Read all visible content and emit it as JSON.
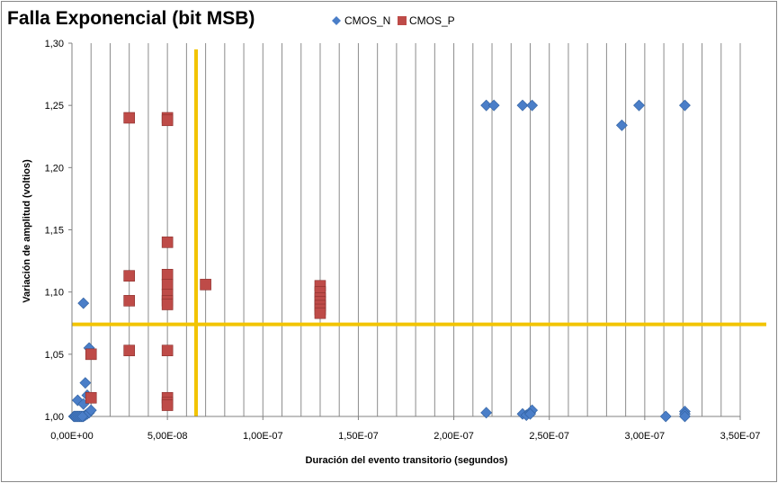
{
  "chart_data": {
    "type": "scatter",
    "title": "Falla Exponencial (bit MSB)",
    "xlabel": "Duración del evento transitorio (segundos)",
    "ylabel": "Variación de amplitud (voltios)",
    "xlim": [
      0,
      3.5e-07
    ],
    "ylim": [
      1.0,
      1.3
    ],
    "x_tick_labels": [
      "0,00E+00",
      "5,00E-08",
      "1,00E-07",
      "1,50E-07",
      "2,00E-07",
      "2,50E-07",
      "3,00E-07",
      "3,50E-07"
    ],
    "x_ticks": [
      0,
      5e-08,
      1e-07,
      1.5e-07,
      2e-07,
      2.5e-07,
      3e-07,
      3.5e-07
    ],
    "y_tick_labels": [
      "1,00",
      "1,05",
      "1,10",
      "1,15",
      "1,20",
      "1,25",
      "1,30"
    ],
    "y_ticks": [
      1.0,
      1.05,
      1.1,
      1.15,
      1.2,
      1.25,
      1.3
    ],
    "x_minor_step": 1e-08,
    "grid": "vertical",
    "legend_position": "top",
    "reference_lines": [
      {
        "orientation": "vertical",
        "x": 6.5e-08,
        "y_from": 1.0,
        "y_to": 1.295,
        "color": "#f2c400"
      },
      {
        "orientation": "horizontal",
        "y": 1.074,
        "color": "#f2c400"
      }
    ],
    "series": [
      {
        "name": "CMOS_N",
        "marker": "diamond",
        "color": "#4a7ec8",
        "x": [
          1e-09,
          2e-09,
          3e-09,
          4e-09,
          5e-09,
          6e-09,
          7e-09,
          8e-09,
          9e-09,
          1e-08,
          1.5e-09,
          2.5e-09,
          3.5e-09,
          4.5e-09,
          5.5e-09,
          3e-09,
          6e-09,
          8e-09,
          7e-09,
          9e-09,
          6e-09,
          2.17e-07,
          2.17e-07,
          2.21e-07,
          2.36e-07,
          2.36e-07,
          2.38e-07,
          2.4e-07,
          2.41e-07,
          2.41e-07,
          2.4e-07,
          2.88e-07,
          2.97e-07,
          3.11e-07,
          3.21e-07,
          3.21e-07,
          3.21e-07,
          3.21e-07
        ],
        "y": [
          1.0,
          1.0,
          1.0,
          1.0,
          1.0,
          1.0,
          1.001,
          1.002,
          1.003,
          1.005,
          1.0,
          1.0,
          1.0,
          1.0,
          1.0,
          1.013,
          1.01,
          1.017,
          1.027,
          1.055,
          1.091,
          1.003,
          1.25,
          1.25,
          1.25,
          1.002,
          1.001,
          1.003,
          1.005,
          1.25,
          1.002,
          1.234,
          1.25,
          1.0,
          1.25,
          1.004,
          1.002,
          1.0
        ]
      },
      {
        "name": "CMOS_P",
        "marker": "square",
        "color": "#be4b48",
        "x": [
          1e-08,
          1e-08,
          3e-08,
          3e-08,
          3e-08,
          3e-08,
          5e-08,
          5e-08,
          5e-08,
          5e-08,
          5e-08,
          5e-08,
          5e-08,
          5e-08,
          5e-08,
          5e-08,
          5e-08,
          5e-08,
          7e-08,
          1.3e-07,
          1.3e-07,
          1.3e-07,
          1.3e-07,
          1.3e-07,
          1.3e-07,
          1.3e-07
        ],
        "y": [
          1.05,
          1.015,
          1.24,
          1.113,
          1.093,
          1.053,
          1.24,
          1.238,
          1.14,
          1.114,
          1.106,
          1.098,
          1.093,
          1.09,
          1.053,
          1.015,
          1.011,
          1.009,
          1.106,
          1.105,
          1.1,
          1.095,
          1.092,
          1.089,
          1.086,
          1.083
        ]
      }
    ]
  }
}
